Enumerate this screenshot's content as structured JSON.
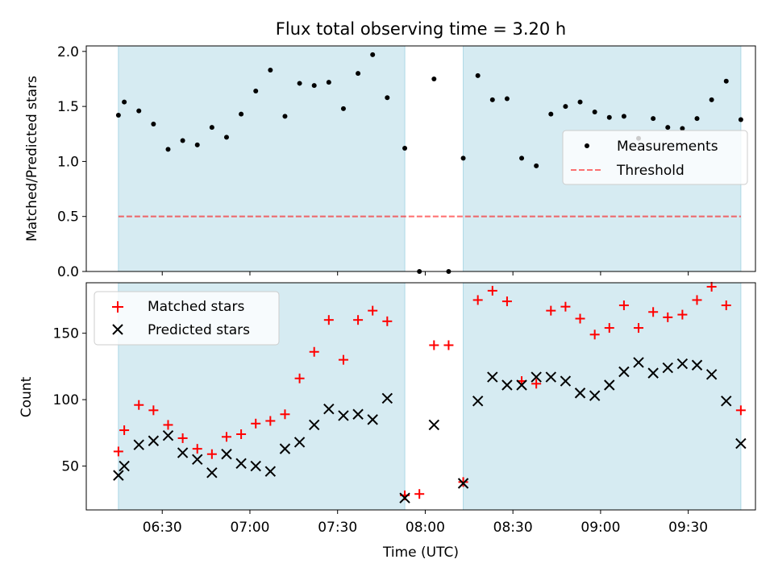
{
  "title": "Flux total observing time = 3.20 h",
  "top": {
    "ylabel": "Matched/Predicted stars",
    "ylim": [
      0,
      2.05
    ],
    "yticks": [
      0.0,
      0.5,
      1.0,
      1.5,
      2.0
    ],
    "ytick_labels": [
      "0.0",
      "0.5",
      "1.0",
      "1.5",
      "2.0"
    ],
    "legend": {
      "measurements": "Measurements",
      "threshold": "Threshold"
    }
  },
  "bottom": {
    "ylabel": "Count",
    "ylim": [
      17,
      188
    ],
    "yticks": [
      50,
      100,
      150
    ],
    "ytick_labels": [
      "50",
      "100",
      "150"
    ],
    "legend": {
      "matched": "Matched stars",
      "predicted": "Predicted stars"
    }
  },
  "xlabel": "Time (UTC)",
  "xlim": [
    "06:04",
    "09:53"
  ],
  "xticks": [
    "06:30",
    "07:00",
    "07:30",
    "08:00",
    "08:30",
    "09:00",
    "09:30"
  ],
  "colors": {
    "shade": "#add8e6",
    "threshold": "#ff0000",
    "matched": "#ff0000",
    "predicted": "#000000",
    "measurements": "#000000"
  },
  "chart_data": [
    {
      "type": "scatter",
      "panel": "top",
      "ylabel": "Matched/Predicted stars",
      "ylim": [
        0,
        2.05
      ],
      "threshold": {
        "name": "Threshold",
        "y": 0.5,
        "x_range": [
          "06:15",
          "09:48"
        ],
        "style": "dashed"
      },
      "shaded_intervals": [
        [
          "06:15",
          "07:53"
        ],
        [
          "08:13",
          "09:48"
        ]
      ],
      "series": [
        {
          "name": "Measurements",
          "points": [
            [
              "06:15",
              1.42
            ],
            [
              "06:17",
              1.54
            ],
            [
              "06:22",
              1.46
            ],
            [
              "06:27",
              1.34
            ],
            [
              "06:32",
              1.11
            ],
            [
              "06:37",
              1.19
            ],
            [
              "06:42",
              1.15
            ],
            [
              "06:47",
              1.31
            ],
            [
              "06:52",
              1.22
            ],
            [
              "06:57",
              1.43
            ],
            [
              "07:02",
              1.64
            ],
            [
              "07:07",
              1.83
            ],
            [
              "07:12",
              1.41
            ],
            [
              "07:17",
              1.71
            ],
            [
              "07:22",
              1.69
            ],
            [
              "07:27",
              1.72
            ],
            [
              "07:32",
              1.48
            ],
            [
              "07:37",
              1.8
            ],
            [
              "07:42",
              1.97
            ],
            [
              "07:47",
              1.58
            ],
            [
              "07:53",
              1.12
            ],
            [
              "07:58",
              0.0
            ],
            [
              "08:03",
              1.75
            ],
            [
              "08:08",
              0.0
            ],
            [
              "08:13",
              1.03
            ],
            [
              "08:18",
              1.78
            ],
            [
              "08:23",
              1.56
            ],
            [
              "08:28",
              1.57
            ],
            [
              "08:33",
              1.03
            ],
            [
              "08:38",
              0.96
            ],
            [
              "08:43",
              1.43
            ],
            [
              "08:48",
              1.5
            ],
            [
              "08:53",
              1.54
            ],
            [
              "08:58",
              1.45
            ],
            [
              "09:03",
              1.4
            ],
            [
              "09:08",
              1.41
            ],
            [
              "09:13",
              1.21
            ],
            [
              "09:18",
              1.39
            ],
            [
              "09:23",
              1.31
            ],
            [
              "09:28",
              1.3
            ],
            [
              "09:33",
              1.39
            ],
            [
              "09:38",
              1.56
            ],
            [
              "09:43",
              1.73
            ],
            [
              "09:48",
              1.38
            ]
          ]
        }
      ]
    },
    {
      "type": "scatter",
      "panel": "bottom",
      "ylabel": "Count",
      "xlabel": "Time (UTC)",
      "ylim": [
        17,
        188
      ],
      "shaded_intervals": [
        [
          "06:15",
          "07:53"
        ],
        [
          "08:13",
          "09:48"
        ]
      ],
      "series": [
        {
          "name": "Matched stars",
          "marker": "+",
          "points": [
            [
              "06:15",
              61
            ],
            [
              "06:17",
              77
            ],
            [
              "06:22",
              96
            ],
            [
              "06:27",
              92
            ],
            [
              "06:32",
              81
            ],
            [
              "06:37",
              71
            ],
            [
              "06:42",
              63
            ],
            [
              "06:47",
              59
            ],
            [
              "06:52",
              72
            ],
            [
              "06:57",
              74
            ],
            [
              "07:02",
              82
            ],
            [
              "07:07",
              84
            ],
            [
              "07:12",
              89
            ],
            [
              "07:17",
              116
            ],
            [
              "07:22",
              136
            ],
            [
              "07:27",
              160
            ],
            [
              "07:32",
              130
            ],
            [
              "07:37",
              160
            ],
            [
              "07:42",
              167
            ],
            [
              "07:47",
              159
            ],
            [
              "07:53",
              28
            ],
            [
              "07:58",
              29
            ],
            [
              "08:03",
              141
            ],
            [
              "08:08",
              141
            ],
            [
              "08:13",
              38
            ],
            [
              "08:18",
              175
            ],
            [
              "08:23",
              182
            ],
            [
              "08:28",
              174
            ],
            [
              "08:33",
              114
            ],
            [
              "08:38",
              112
            ],
            [
              "08:43",
              167
            ],
            [
              "08:48",
              170
            ],
            [
              "08:53",
              161
            ],
            [
              "08:58",
              149
            ],
            [
              "09:03",
              154
            ],
            [
              "09:08",
              171
            ],
            [
              "09:13",
              154
            ],
            [
              "09:18",
              166
            ],
            [
              "09:23",
              162
            ],
            [
              "09:28",
              164
            ],
            [
              "09:33",
              175
            ],
            [
              "09:38",
              185
            ],
            [
              "09:43",
              171
            ],
            [
              "09:48",
              92
            ]
          ]
        },
        {
          "name": "Predicted stars",
          "marker": "x",
          "points": [
            [
              "06:15",
              43
            ],
            [
              "06:17",
              50
            ],
            [
              "06:22",
              66
            ],
            [
              "06:27",
              69
            ],
            [
              "06:32",
              73
            ],
            [
              "06:37",
              60
            ],
            [
              "06:42",
              55
            ],
            [
              "06:47",
              45
            ],
            [
              "06:52",
              59
            ],
            [
              "06:57",
              52
            ],
            [
              "07:02",
              50
            ],
            [
              "07:07",
              46
            ],
            [
              "07:12",
              63
            ],
            [
              "07:17",
              68
            ],
            [
              "07:22",
              81
            ],
            [
              "07:27",
              93
            ],
            [
              "07:32",
              88
            ],
            [
              "07:37",
              89
            ],
            [
              "07:42",
              85
            ],
            [
              "07:47",
              101
            ],
            [
              "07:53",
              26
            ],
            [
              "08:03",
              81
            ],
            [
              "08:13",
              37
            ],
            [
              "08:18",
              99
            ],
            [
              "08:23",
              117
            ],
            [
              "08:28",
              111
            ],
            [
              "08:33",
              111
            ],
            [
              "08:38",
              117
            ],
            [
              "08:43",
              117
            ],
            [
              "08:48",
              114
            ],
            [
              "08:53",
              105
            ],
            [
              "08:58",
              103
            ],
            [
              "09:03",
              111
            ],
            [
              "09:08",
              121
            ],
            [
              "09:13",
              128
            ],
            [
              "09:18",
              120
            ],
            [
              "09:23",
              124
            ],
            [
              "09:28",
              127
            ],
            [
              "09:33",
              126
            ],
            [
              "09:38",
              119
            ],
            [
              "09:43",
              99
            ],
            [
              "09:48",
              67
            ]
          ]
        }
      ]
    }
  ]
}
